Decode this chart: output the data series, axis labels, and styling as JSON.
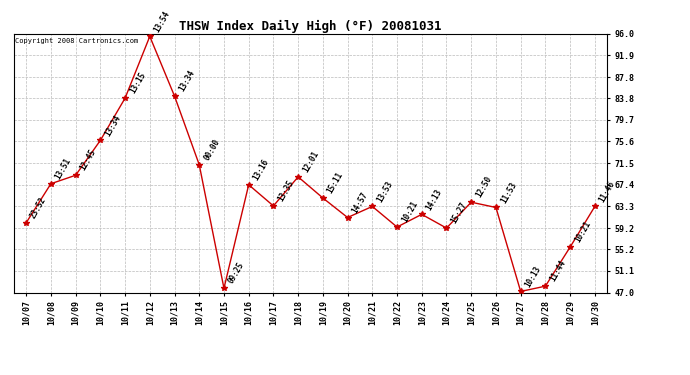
{
  "title": "THSW Index Daily High (°F) 20081031",
  "copyright": "Copyright 2008 Cartronics.com",
  "dates": [
    "10/07",
    "10/08",
    "10/09",
    "10/10",
    "10/11",
    "10/12",
    "10/13",
    "10/14",
    "10/15",
    "10/16",
    "10/17",
    "10/18",
    "10/19",
    "10/20",
    "10/21",
    "10/22",
    "10/23",
    "10/24",
    "10/25",
    "10/26",
    "10/27",
    "10/28",
    "10/29",
    "10/30"
  ],
  "values": [
    60.2,
    67.6,
    69.2,
    75.8,
    83.8,
    95.5,
    84.2,
    71.2,
    47.8,
    67.4,
    63.4,
    68.9,
    64.9,
    61.2,
    63.3,
    59.4,
    61.8,
    59.2,
    64.1,
    63.1,
    47.2,
    48.2,
    55.6,
    63.3
  ],
  "time_labels": [
    "23:52",
    "13:51",
    "12:45",
    "13:34",
    "13:15",
    "13:54",
    "13:34",
    "00:00",
    "09:25",
    "13:16",
    "13:35",
    "12:01",
    "15:11",
    "14:57",
    "13:53",
    "10:21",
    "14:13",
    "15:27",
    "12:50",
    "11:53",
    "10:13",
    "11:44",
    "10:21",
    "11:46"
  ],
  "ylim": [
    47.0,
    96.0
  ],
  "yticks": [
    47.0,
    51.1,
    55.2,
    59.2,
    63.3,
    67.4,
    71.5,
    75.6,
    79.7,
    83.8,
    87.8,
    91.9,
    96.0
  ],
  "line_color": "#cc0000",
  "marker_color": "#cc0000",
  "grid_color": "#bbbbbb",
  "bg_color": "#ffffff",
  "title_fontsize": 9,
  "label_fontsize": 5.5,
  "tick_fontsize": 6,
  "copyright_fontsize": 5
}
